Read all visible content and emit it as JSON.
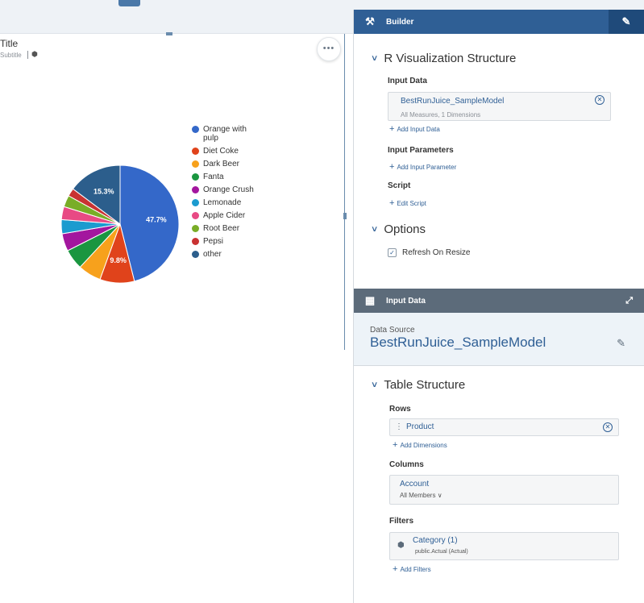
{
  "canvas": {
    "widget_title": "Title",
    "widget_subtitle": "Subtitle",
    "more_label": "•••"
  },
  "chart_data": {
    "type": "pie",
    "title": "",
    "categories": [
      "Orange with pulp",
      "Diet Coke",
      "Dark Beer",
      "Fanta",
      "Orange Crush",
      "Lemonade",
      "Apple Cider",
      "Root Beer",
      "Pepsi",
      "other"
    ],
    "values": [
      47.7,
      9.8,
      6.6,
      5.8,
      5.0,
      4.0,
      3.7,
      3.3,
      2.3,
      15.3
    ],
    "colors": [
      "#3468c9",
      "#e0431b",
      "#f7a11c",
      "#1a9640",
      "#a3169e",
      "#1b9bcf",
      "#e84a84",
      "#79ad27",
      "#c93232",
      "#2c5e8c"
    ],
    "data_labels": [
      "47.7%",
      "9.8%",
      "",
      "",
      "",
      "",
      "",
      "",
      "",
      "15.3%"
    ],
    "legend_position": "right"
  },
  "builder": {
    "header_title": "Builder",
    "section_structure": "R Visualization Structure",
    "input_data_label": "Input Data",
    "input_data_token": "BestRunJuice_SampleModel",
    "input_data_token_sub": "All Measures, 1 Dimensions",
    "add_input_data": "Add Input Data",
    "input_params_label": "Input Parameters",
    "add_input_param": "Add Input Parameter",
    "script_label": "Script",
    "edit_script": "Edit Script",
    "section_options": "Options",
    "refresh_label": "Refresh On Resize",
    "refresh_checked": true
  },
  "input_panel": {
    "header_title": "Input Data",
    "data_source_label": "Data Source",
    "data_source_value": "BestRunJuice_SampleModel",
    "section_table": "Table Structure",
    "rows_label": "Rows",
    "rows_token": "Product",
    "add_dimensions": "Add Dimensions",
    "columns_label": "Columns",
    "columns_token": "Account",
    "columns_token_sub": "All Members",
    "filters_label": "Filters",
    "filter_token": "Category (1)",
    "filter_token_sub": "public.Actual (Actual)",
    "add_filters": "Add Filters"
  }
}
